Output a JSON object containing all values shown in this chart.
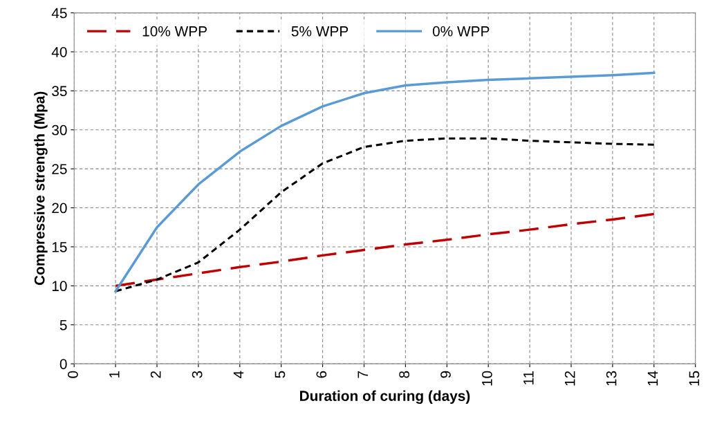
{
  "chart_data": {
    "type": "line",
    "xlabel": "Duration of curing (days)",
    "ylabel": "Compressive strength (Mpa)",
    "x": [
      1,
      2,
      3,
      4,
      5,
      6,
      7,
      8,
      9,
      10,
      11,
      12,
      13,
      14
    ],
    "series": [
      {
        "name": "10% WPP",
        "color": "#c00000",
        "line_style": "dashed",
        "values": [
          10,
          10.8,
          11.6,
          12.4,
          13.1,
          13.9,
          14.6,
          15.3,
          15.9,
          16.6,
          17.2,
          17.9,
          18.5,
          19.2
        ]
      },
      {
        "name": "5% WPP",
        "color": "#000000",
        "line_style": "dotted",
        "values": [
          9.3,
          10.8,
          13,
          17.2,
          22,
          25.7,
          27.8,
          28.6,
          28.9,
          28.9,
          28.6,
          28.4,
          28.2,
          28.1
        ]
      },
      {
        "name": "0% WPP",
        "color": "#5b9bd5",
        "line_style": "solid",
        "values": [
          9.3,
          17.5,
          23,
          27.2,
          30.5,
          33,
          34.7,
          35.7,
          36.1,
          36.4,
          36.6,
          36.8,
          37,
          37.3
        ]
      }
    ],
    "xlim": [
      0,
      15
    ],
    "xticks": [
      0,
      1,
      2,
      3,
      4,
      5,
      6,
      7,
      8,
      9,
      10,
      11,
      12,
      13,
      14,
      15
    ],
    "ylim": [
      0,
      45
    ],
    "yticks": [
      0,
      5,
      10,
      15,
      20,
      25,
      30,
      35,
      40,
      45
    ],
    "grid": true,
    "legend": "top left",
    "marker": "none"
  }
}
